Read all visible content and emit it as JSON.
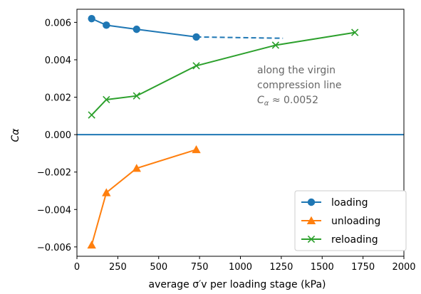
{
  "chart_data": {
    "type": "line",
    "xlabel": "average σ′v per loading stage (kPa)",
    "ylabel": "Cα",
    "xlim": [
      0,
      2000
    ],
    "ylim": [
      -0.0065,
      0.0067
    ],
    "xticks": [
      0,
      250,
      500,
      750,
      1000,
      1250,
      1500,
      1750,
      2000
    ],
    "xtick_labels": [
      "0",
      "250",
      "500",
      "750",
      "1000",
      "1250",
      "1500",
      "1750",
      "2000"
    ],
    "yticks": [
      -0.006,
      -0.004,
      -0.002,
      0.0,
      0.002,
      0.004,
      0.006
    ],
    "ytick_labels": [
      "−0.006",
      "−0.004",
      "−0.002",
      "0.000",
      "0.002",
      "0.004",
      "0.006"
    ],
    "grid": false,
    "legend_position": "bottom-right",
    "zero_line": {
      "y": 0.0,
      "color": "#1f77b4"
    },
    "series": [
      {
        "name": "loading",
        "color": "#1f77b4",
        "marker": "circle",
        "x": [
          90,
          180,
          365,
          730
        ],
        "y": [
          0.0062,
          0.00585,
          0.00563,
          0.00522
        ]
      },
      {
        "name": "unloading",
        "color": "#ff7f0e",
        "marker": "triangle",
        "x": [
          90,
          180,
          365,
          730
        ],
        "y": [
          -0.0059,
          -0.0031,
          -0.0018,
          -0.0008
        ]
      },
      {
        "name": "reloading",
        "color": "#2ca02c",
        "marker": "x",
        "x": [
          90,
          180,
          365,
          730,
          1215,
          1700
        ],
        "y": [
          0.00105,
          0.00187,
          0.00207,
          0.00368,
          0.00478,
          0.00546
        ]
      }
    ],
    "dashed_extension": {
      "color": "#1f77b4",
      "x": [
        730,
        1260
      ],
      "y": [
        0.00522,
        0.00515
      ]
    },
    "annotation": {
      "lines": [
        "along the virgin",
        "compression line"
      ],
      "formula_symbol": "C",
      "formula_subscript": "α",
      "formula_rest": " ≈  0.0052",
      "color": "#666666"
    }
  }
}
